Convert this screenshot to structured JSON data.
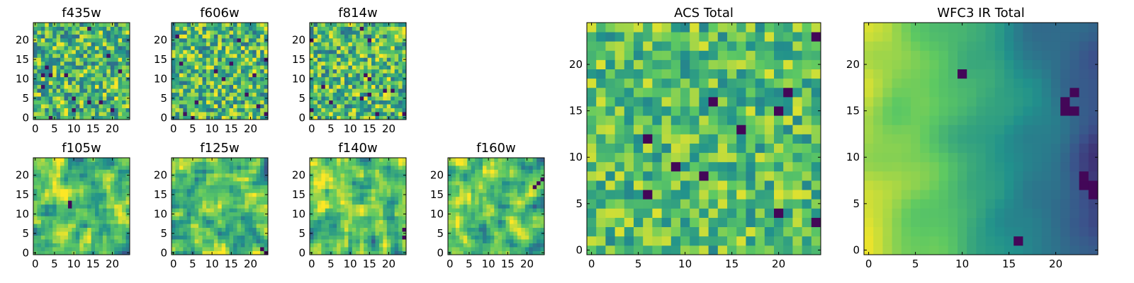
{
  "colormap": [
    "#440154",
    "#3b528b",
    "#21918c",
    "#5ec962",
    "#fde725"
  ],
  "chart_data": [
    {
      "type": "heatmap",
      "title": "f435w",
      "grid": [
        25,
        25
      ],
      "xlim": [
        0,
        25
      ],
      "ylim": [
        0,
        25
      ],
      "xticks": [
        0,
        5,
        10,
        15,
        20
      ],
      "yticks": [
        0,
        5,
        10,
        15,
        20
      ],
      "grid_lines": false,
      "seed": 11,
      "texture": "noise"
    },
    {
      "type": "heatmap",
      "title": "f606w",
      "grid": [
        25,
        25
      ],
      "xlim": [
        0,
        25
      ],
      "ylim": [
        0,
        25
      ],
      "xticks": [
        0,
        5,
        10,
        15,
        20
      ],
      "yticks": [
        0,
        5,
        10,
        15,
        20
      ],
      "grid_lines": false,
      "seed": 23,
      "texture": "noise"
    },
    {
      "type": "heatmap",
      "title": "f814w",
      "grid": [
        25,
        25
      ],
      "xlim": [
        0,
        25
      ],
      "ylim": [
        0,
        25
      ],
      "xticks": [
        0,
        5,
        10,
        15,
        20
      ],
      "yticks": [
        0,
        5,
        10,
        15,
        20
      ],
      "grid_lines": false,
      "seed": 37,
      "texture": "noise"
    },
    {
      "type": "heatmap",
      "title": "f105w",
      "grid": [
        25,
        25
      ],
      "xlim": [
        0,
        25
      ],
      "ylim": [
        0,
        25
      ],
      "xticks": [
        0,
        5,
        10,
        15,
        20
      ],
      "yticks": [
        0,
        5,
        10,
        15,
        20
      ],
      "grid_lines": false,
      "seed": 41,
      "texture": "smooth",
      "dark_spots": [
        [
          9,
          12
        ],
        [
          9,
          13
        ]
      ]
    },
    {
      "type": "heatmap",
      "title": "f125w",
      "grid": [
        25,
        25
      ],
      "xlim": [
        0,
        25
      ],
      "ylim": [
        0,
        25
      ],
      "xticks": [
        0,
        5,
        10,
        15,
        20
      ],
      "yticks": [
        0,
        5,
        10,
        15,
        20
      ],
      "grid_lines": false,
      "seed": 53,
      "texture": "smooth",
      "dark_spots": [
        [
          24,
          0
        ],
        [
          23,
          1
        ]
      ]
    },
    {
      "type": "heatmap",
      "title": "f140w",
      "grid": [
        25,
        25
      ],
      "xlim": [
        0,
        25
      ],
      "ylim": [
        0,
        25
      ],
      "xticks": [
        0,
        5,
        10,
        15,
        20
      ],
      "yticks": [
        0,
        5,
        10,
        15,
        20
      ],
      "grid_lines": false,
      "seed": 67,
      "texture": "smooth",
      "bright_corner": "top-left",
      "dark_spots": [
        [
          24,
          6
        ],
        [
          24,
          4
        ]
      ]
    },
    {
      "type": "heatmap",
      "title": "f160w",
      "grid": [
        25,
        25
      ],
      "xlim": [
        0,
        25
      ],
      "ylim": [
        0,
        25
      ],
      "xticks": [
        0,
        5,
        10,
        15,
        20
      ],
      "yticks": [
        0,
        5,
        10,
        15,
        20
      ],
      "grid_lines": false,
      "seed": 79,
      "texture": "smooth",
      "bright_corner": "left",
      "dark_spots": [
        [
          23,
          18
        ],
        [
          22,
          17
        ],
        [
          24,
          19
        ]
      ]
    },
    {
      "type": "heatmap",
      "title": "ACS Total",
      "grid": [
        25,
        25
      ],
      "xlim": [
        0,
        25
      ],
      "ylim": [
        0,
        25
      ],
      "xticks": [
        0,
        5,
        10,
        15,
        20
      ],
      "yticks": [
        0,
        5,
        10,
        15,
        20
      ],
      "grid_lines": false,
      "seed": 97,
      "texture": "blocky",
      "dark_spots": [
        [
          24,
          23
        ],
        [
          21,
          17
        ],
        [
          20,
          15
        ],
        [
          16,
          13
        ],
        [
          6,
          12
        ],
        [
          9,
          9
        ],
        [
          6,
          6
        ],
        [
          20,
          4
        ],
        [
          24,
          3
        ],
        [
          12,
          8
        ],
        [
          13,
          16
        ]
      ]
    },
    {
      "type": "heatmap",
      "title": "WFC3 IR Total",
      "grid": [
        25,
        25
      ],
      "xlim": [
        0,
        25
      ],
      "ylim": [
        0,
        25
      ],
      "xticks": [
        0,
        5,
        10,
        15,
        20
      ],
      "yticks": [
        0,
        5,
        10,
        15,
        20
      ],
      "grid_lines": false,
      "seed": 113,
      "texture": "gradient",
      "dark_spots": [
        [
          21,
          16
        ],
        [
          22,
          17
        ],
        [
          21,
          15
        ],
        [
          22,
          15
        ],
        [
          23,
          7
        ],
        [
          24,
          7
        ],
        [
          24,
          6
        ],
        [
          23,
          8
        ],
        [
          16,
          1
        ],
        [
          10,
          19
        ]
      ]
    }
  ]
}
